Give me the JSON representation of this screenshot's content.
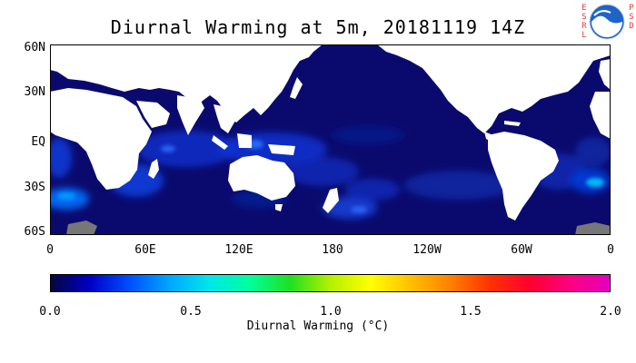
{
  "title": "Diurnal Warming at 5m, 20181119 14Z",
  "badge": {
    "left_letters": [
      "E",
      "S",
      "R",
      "L"
    ],
    "right_letters": [
      "P",
      "S",
      "D"
    ],
    "logo_text": "NOAA"
  },
  "map": {
    "lat_labels": [
      "60N",
      "30N",
      "EQ",
      "30S",
      "60S"
    ],
    "lon_labels": [
      "0",
      "60E",
      "120E",
      "180",
      "120W",
      "60W",
      "0"
    ],
    "ocean_color": "#0a0a6e",
    "land_color": "#ffffff",
    "ice_color": "#777777"
  },
  "colorbar": {
    "labels": [
      "0.0",
      "0.5",
      "1.0",
      "1.5",
      "2.0"
    ],
    "title": "Diurnal Warming (°C)",
    "range": [
      0.0,
      2.0
    ],
    "colors": [
      "#06063a",
      "#0000c8",
      "#0050ff",
      "#00a8ff",
      "#00e8e8",
      "#00ff9a",
      "#20e020",
      "#b4f000",
      "#ffff00",
      "#ffc000",
      "#ff8000",
      "#ff3000",
      "#ff0030",
      "#ff0080",
      "#e000c0"
    ]
  }
}
